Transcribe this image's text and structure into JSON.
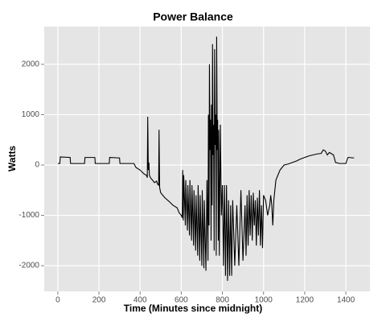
{
  "chart_data": {
    "type": "line",
    "title": "Power Balance",
    "xlabel": "Time (Minutes since midnight)",
    "ylabel": "Watts",
    "x": [
      0,
      10,
      12,
      60,
      62,
      130,
      132,
      180,
      182,
      250,
      252,
      300,
      302,
      370,
      380,
      400,
      420,
      430,
      435,
      437,
      440,
      443,
      445,
      450,
      460,
      470,
      480,
      485,
      490,
      492,
      495,
      500,
      520,
      540,
      560,
      580,
      590,
      600,
      605,
      607,
      610,
      612,
      620,
      622,
      630,
      632,
      640,
      642,
      650,
      652,
      660,
      662,
      670,
      672,
      680,
      682,
      690,
      692,
      700,
      702,
      710,
      712,
      720,
      725,
      730,
      732,
      735,
      737,
      740,
      742,
      745,
      747,
      750,
      752,
      755,
      757,
      760,
      762,
      765,
      767,
      770,
      772,
      775,
      777,
      780,
      782,
      785,
      790,
      795,
      800,
      805,
      810,
      815,
      820,
      825,
      830,
      835,
      840,
      845,
      850,
      860,
      870,
      880,
      890,
      900,
      910,
      915,
      920,
      925,
      930,
      935,
      940,
      945,
      950,
      955,
      960,
      965,
      970,
      975,
      980,
      985,
      990,
      995,
      1000,
      1010,
      1020,
      1030,
      1035,
      1040,
      1045,
      1050,
      1060,
      1070,
      1080,
      1090,
      1100,
      1120,
      1140,
      1160,
      1180,
      1200,
      1220,
      1240,
      1260,
      1280,
      1290,
      1300,
      1310,
      1320,
      1340,
      1350,
      1370,
      1390,
      1400,
      1410,
      1415,
      1440
    ],
    "values": [
      30,
      30,
      160,
      150,
      30,
      30,
      150,
      150,
      30,
      30,
      150,
      140,
      30,
      30,
      -50,
      -100,
      -180,
      -200,
      -250,
      960,
      -100,
      50,
      -200,
      -250,
      -300,
      -350,
      -320,
      -380,
      -400,
      700,
      -450,
      -550,
      -650,
      -720,
      -800,
      -850,
      -950,
      -1000,
      -1050,
      -100,
      -1100,
      -200,
      -1200,
      -300,
      -1300,
      -400,
      -1400,
      -300,
      -1500,
      -400,
      -1600,
      -500,
      -1700,
      -600,
      -1800,
      -400,
      -1900,
      -600,
      -2000,
      -500,
      -2050,
      -700,
      -2100,
      -300,
      -1900,
      1000,
      -1200,
      2000,
      300,
      900,
      -1500,
      1200,
      -800,
      2400,
      200,
      800,
      -1700,
      2300,
      400,
      1000,
      -1800,
      2550,
      300,
      900,
      -1500,
      700,
      -1800,
      800,
      -1000,
      -400,
      -2000,
      -400,
      -2200,
      -400,
      -2300,
      -700,
      -2200,
      -800,
      -2200,
      -700,
      -2000,
      -800,
      -2000,
      -500,
      -1900,
      -800,
      -1800,
      -600,
      -1600,
      -500,
      -1400,
      -600,
      -1500,
      -550,
      -1200,
      -700,
      -1600,
      -650,
      -1400,
      -500,
      -1600,
      -800,
      -1650,
      -600,
      -700,
      -1000,
      -800,
      -600,
      -800,
      -1200,
      -700,
      -300,
      -200,
      -100,
      -50,
      0,
      20,
      50,
      80,
      120,
      150,
      180,
      200,
      220,
      230,
      300,
      280,
      200,
      250,
      200,
      50,
      30,
      30,
      30,
      150,
      150,
      140
    ],
    "color": "#000000",
    "xlim": [
      -66,
      1517
    ],
    "ylim": [
      -2510,
      2750
    ],
    "xticks": [
      0,
      200,
      400,
      600,
      800,
      1000,
      1200,
      1400
    ],
    "yticks": [
      -2000,
      -1000,
      0,
      1000,
      2000
    ],
    "grid": true
  }
}
